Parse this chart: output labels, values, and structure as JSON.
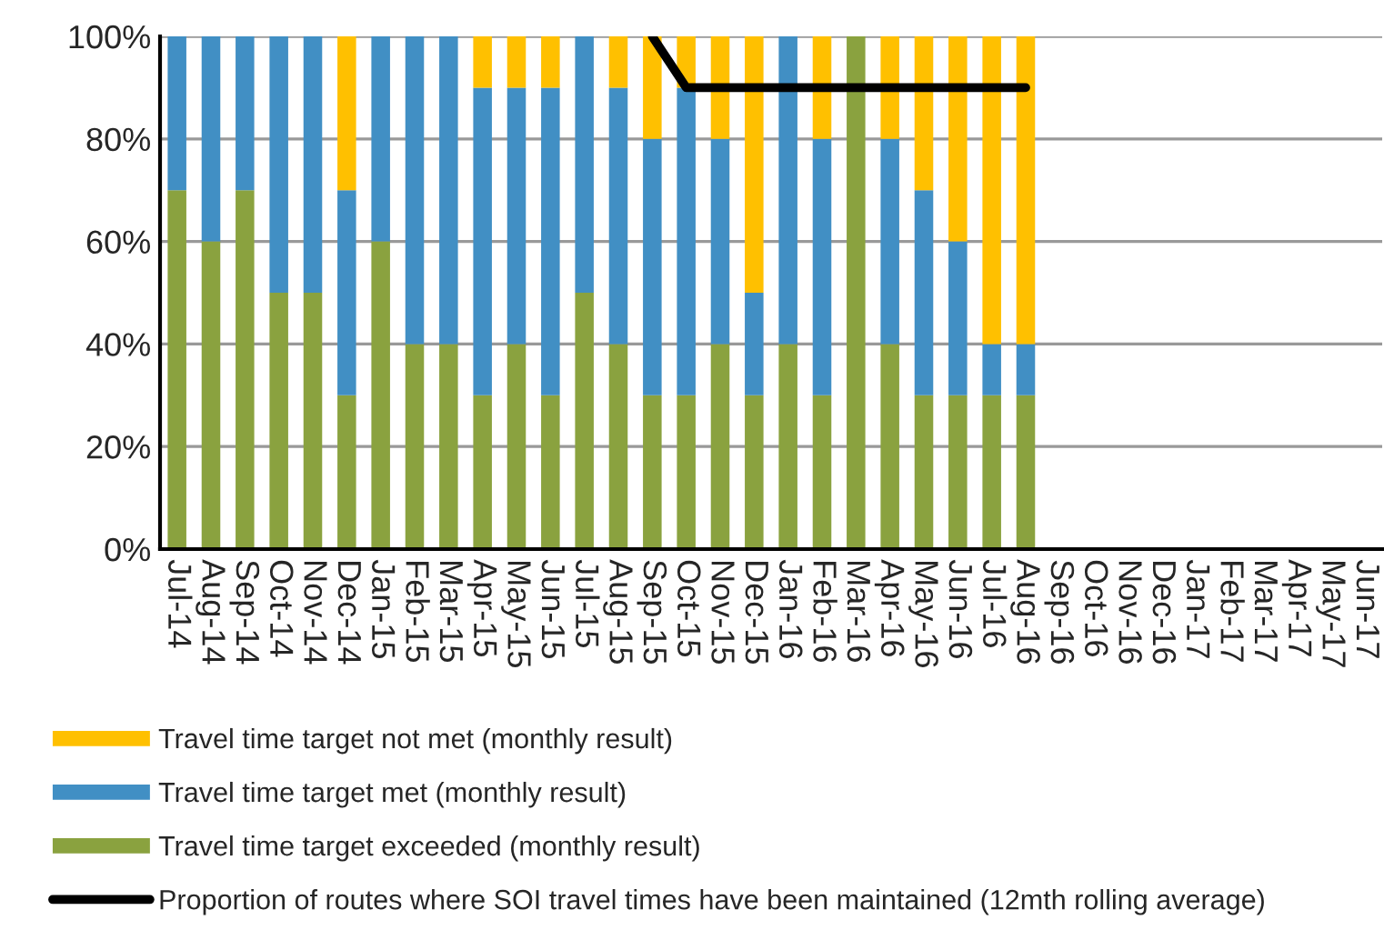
{
  "chart_data": {
    "type": "bar",
    "stacked": true,
    "categories": [
      "Jul-14",
      "Aug-14",
      "Sep-14",
      "Oct-14",
      "Nov-14",
      "Dec-14",
      "Jan-15",
      "Feb-15",
      "Mar-15",
      "Apr-15",
      "May-15",
      "Jun-15",
      "Jul-15",
      "Aug-15",
      "Sep-15",
      "Oct-15",
      "Nov-15",
      "Dec-15",
      "Jan-16",
      "Feb-16",
      "Mar-16",
      "Apr-16",
      "May-16",
      "Jun-16",
      "Jul-16",
      "Aug-16",
      "Sep-16",
      "Oct-16",
      "Nov-16",
      "Dec-16",
      "Jan-17",
      "Feb-17",
      "Mar-17",
      "Apr-17",
      "May-17",
      "Jun-17"
    ],
    "series": [
      {
        "name": "Travel time target exceeded (monthly result)",
        "color": "#8aa23f",
        "values": [
          70,
          60,
          70,
          50,
          50,
          30,
          60,
          40,
          40,
          30,
          40,
          30,
          50,
          40,
          30,
          30,
          40,
          30,
          40,
          30,
          100,
          40,
          30,
          30,
          30,
          30,
          null,
          null,
          null,
          null,
          null,
          null,
          null,
          null,
          null,
          null
        ]
      },
      {
        "name": "Travel time target met (monthly result)",
        "color": "#418fc4",
        "values": [
          30,
          40,
          30,
          50,
          50,
          40,
          40,
          60,
          60,
          60,
          50,
          60,
          50,
          50,
          50,
          60,
          40,
          20,
          60,
          50,
          null,
          40,
          40,
          30,
          10,
          10,
          null,
          null,
          null,
          null,
          null,
          null,
          null,
          null,
          null,
          null
        ]
      },
      {
        "name": "Travel time target not met (monthly result)",
        "color": "#ffc000",
        "values": [
          null,
          null,
          null,
          null,
          null,
          30,
          null,
          null,
          null,
          10,
          10,
          10,
          null,
          10,
          20,
          10,
          20,
          50,
          null,
          20,
          null,
          20,
          30,
          40,
          60,
          60,
          null,
          null,
          null,
          null,
          null,
          null,
          null,
          null,
          null,
          null
        ]
      },
      {
        "name": "Proportion of routes where SOI travel times have been maintained (12mth rolling average)",
        "type": "line",
        "color": "#000000",
        "values": [
          null,
          null,
          null,
          null,
          null,
          null,
          null,
          null,
          null,
          null,
          null,
          null,
          null,
          null,
          100,
          90,
          90,
          90,
          90,
          90,
          90,
          90,
          90,
          90,
          90,
          90,
          null,
          null,
          null,
          null,
          null,
          null,
          null,
          null,
          null,
          null
        ]
      }
    ],
    "ylim": [
      0,
      100
    ],
    "yticks": [
      {
        "value": 0,
        "label": "0%"
      },
      {
        "value": 20,
        "label": "20%"
      },
      {
        "value": 40,
        "label": "40%"
      },
      {
        "value": 60,
        "label": "60%"
      },
      {
        "value": 80,
        "label": "80%"
      },
      {
        "value": 100,
        "label": "100%"
      }
    ],
    "grid": "y",
    "legend": "bottom",
    "marker": "none",
    "line_style": "solid"
  }
}
